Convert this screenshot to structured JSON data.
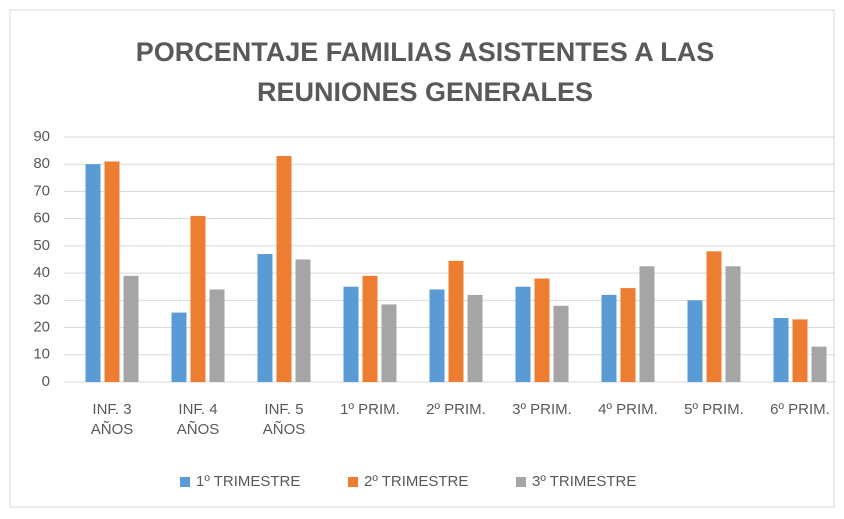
{
  "chart_data": {
    "type": "bar",
    "title": "PORCENTAJE FAMILIAS ASISTENTES A LAS REUNIONES GENERALES",
    "categories": [
      "INF. 3\nAÑOS",
      "INF. 4\nAÑOS",
      "INF. 5\nAÑOS",
      "1º PRIM.",
      "2º PRIM.",
      "3º PRIM.",
      "4º PRIM.",
      "5º PRIM.",
      "6º PRIM."
    ],
    "series": [
      {
        "name": "1º TRIMESTRE",
        "color": "#5b9bd5",
        "values": [
          80,
          25.5,
          47,
          35,
          34,
          35,
          32,
          30,
          23.5
        ]
      },
      {
        "name": "2º TRIMESTRE",
        "color": "#ed7d31",
        "values": [
          81,
          61,
          83,
          39,
          44.5,
          38,
          34.5,
          48,
          23
        ]
      },
      {
        "name": "3º TRIMESTRE",
        "color": "#a5a5a5",
        "values": [
          39,
          34,
          45,
          28.5,
          32,
          28,
          42.5,
          42.5,
          13
        ]
      }
    ],
    "ylim": [
      0,
      90
    ],
    "yticks": [
      0,
      10,
      20,
      30,
      40,
      50,
      60,
      70,
      80,
      90
    ],
    "grid": true,
    "legend": "bottom"
  }
}
